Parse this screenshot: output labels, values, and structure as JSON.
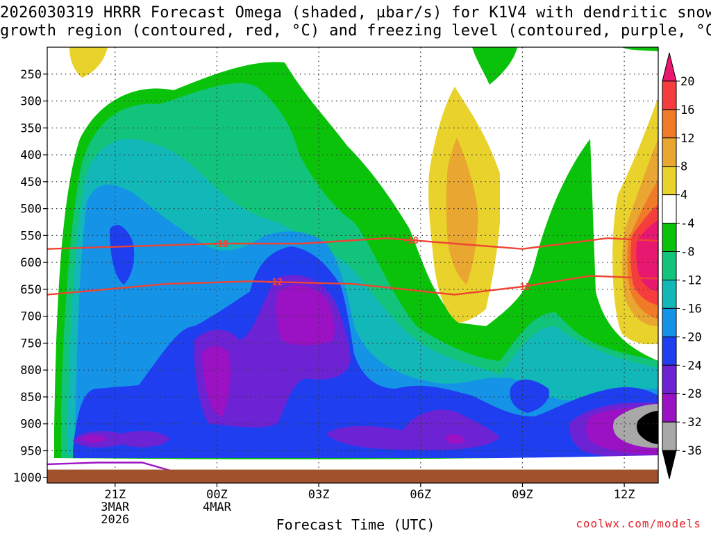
{
  "title": {
    "line1": "2026030319 HRRR Forecast Omega (shaded, µbar/s) for K1V4 with dendritic snow",
    "line2": "growth region (contoured, red, °C) and freezing level (contoured, purple, °C)"
  },
  "credit": "coolwx.com/models",
  "chart_data": {
    "type": "heatmap",
    "title": "2026030319 HRRR Forecast Omega (shaded, µbar/s) for K1V4 with dendritic snow growth region (contoured, red, °C) and freezing level (contoured, purple, °C)",
    "xlabel": "Forecast Time (UTC)",
    "ylabel": "",
    "x_ticks": [
      {
        "label": "21Z",
        "sub1": "3MAR",
        "sub2": "2026"
      },
      {
        "label": "00Z",
        "sub1": "4MAR",
        "sub2": ""
      },
      {
        "label": "03Z",
        "sub1": "",
        "sub2": ""
      },
      {
        "label": "06Z",
        "sub1": "",
        "sub2": ""
      },
      {
        "label": "09Z",
        "sub1": "",
        "sub2": ""
      },
      {
        "label": "12Z",
        "sub1": "",
        "sub2": ""
      }
    ],
    "x_hours": [
      21,
      24,
      27,
      30,
      33,
      36
    ],
    "x_range_hours": [
      19,
      37
    ],
    "y_axis": "pressure (hPa), reversed",
    "y_range": [
      1010,
      200
    ],
    "y_ticks": [
      250,
      300,
      350,
      400,
      450,
      500,
      550,
      600,
      650,
      700,
      750,
      800,
      850,
      900,
      950,
      1000
    ],
    "grid": true,
    "colorbar": {
      "placement": "right",
      "labels": [
        "20",
        "16",
        "12",
        "8",
        "4",
        "-4",
        "-8",
        "-12",
        "-16",
        "-20",
        "-24",
        "-28",
        "-32",
        "-36"
      ],
      "colors": [
        "#e8176f",
        "#f63d3d",
        "#f07a28",
        "#e9a630",
        "#e8d22b",
        "#ffffff",
        "#0bc20b",
        "#12c47b",
        "#12b7b7",
        "#1593e6",
        "#1e3ef0",
        "#6d23d4",
        "#9b12c4",
        "#a8a8a8",
        "#000000"
      ]
    },
    "contours": [
      {
        "name": "-18",
        "color": "#ee4433",
        "x": [
          19,
          24,
          26.5,
          29,
          31,
          33,
          35.5,
          37
        ],
        "y": [
          575,
          565,
          565,
          555,
          565,
          575,
          555,
          560
        ]
      },
      {
        "name": "-12",
        "color": "#ee4433",
        "x": [
          19,
          22.5,
          25,
          28,
          31,
          33,
          35,
          37
        ],
        "y": [
          660,
          640,
          635,
          640,
          660,
          645,
          625,
          630
        ]
      }
    ],
    "freezing_level": {
      "color": "#9b12c4",
      "x": [
        19,
        20.5,
        21.8,
        22.8
      ],
      "y": [
        975,
        972,
        972,
        990
      ]
    },
    "terrain": {
      "color": "#a0522d",
      "top_hPa": 985
    }
  }
}
